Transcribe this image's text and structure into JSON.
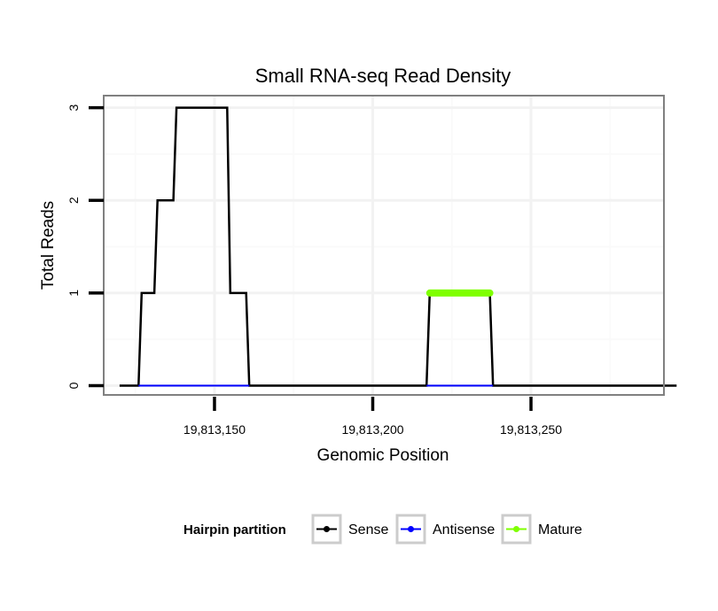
{
  "chart_data": {
    "type": "line",
    "title": "Small RNA-seq Read Density",
    "xlabel": "Genomic Position",
    "ylabel": "Total Reads",
    "xlim": [
      19813115,
      19813292
    ],
    "ylim": [
      -0.1,
      3.13
    ],
    "x_ticks": [
      19813150,
      19813200,
      19813250
    ],
    "x_tick_labels": [
      "19,813,150",
      "19,813,200",
      "19,813,250"
    ],
    "y_ticks": [
      0,
      1,
      2,
      3
    ],
    "y_tick_labels": [
      "0",
      "1",
      "2",
      "3"
    ],
    "x_minor_grid": [
      19813125,
      19813175,
      19813225,
      19813275
    ],
    "y_minor_grid": [
      0.5,
      1.5,
      2.5
    ],
    "grid": true,
    "legend": {
      "title": "Hairpin partition",
      "position": "bottom"
    },
    "series": [
      {
        "name": "Sense",
        "color": "#000000",
        "points": [
          [
            19813120,
            0
          ],
          [
            19813126,
            0
          ],
          [
            19813127,
            1
          ],
          [
            19813131,
            1
          ],
          [
            19813132,
            2
          ],
          [
            19813137,
            2
          ],
          [
            19813138,
            3
          ],
          [
            19813154,
            3
          ],
          [
            19813155,
            1
          ],
          [
            19813160,
            1
          ],
          [
            19813161,
            0
          ],
          [
            19813217,
            0
          ],
          [
            19813218,
            1
          ],
          [
            19813237,
            1
          ],
          [
            19813238,
            0
          ],
          [
            19813296,
            0
          ]
        ]
      },
      {
        "name": "Antisense",
        "color": "#0000ff",
        "points": [
          [
            19813126,
            0
          ],
          [
            19813161,
            0
          ],
          [
            19813217,
            0
          ],
          [
            19813238,
            0
          ]
        ],
        "segments": [
          [
            0,
            1
          ],
          [
            2,
            3
          ]
        ]
      },
      {
        "name": "Mature",
        "color": "#7fff00",
        "points": [
          [
            19813218,
            1
          ],
          [
            19813237,
            1
          ]
        ]
      }
    ]
  }
}
